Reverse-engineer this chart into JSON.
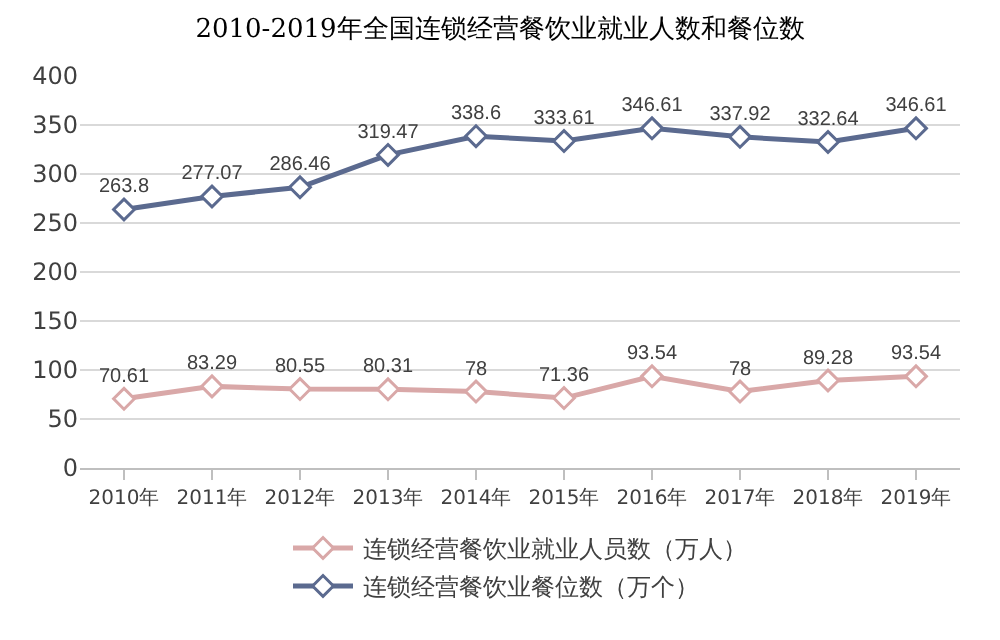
{
  "chart_data": {
    "type": "line",
    "title": "2010-2019年全国连锁经营餐饮业就业人数和餐位数",
    "categories": [
      "2010年",
      "2011年",
      "2012年",
      "2013年",
      "2014年",
      "2015年",
      "2016年",
      "2017年",
      "2018年",
      "2019年"
    ],
    "series": [
      {
        "name": "连锁经营餐饮业就业人员数（万人）",
        "color": "#d9a8a8",
        "values": [
          70.61,
          83.29,
          80.55,
          80.31,
          78,
          71.36,
          93.54,
          78,
          89.28,
          93.54
        ]
      },
      {
        "name": "连锁经营餐饮业餐位数（万个）",
        "color": "#5b6a8f",
        "values": [
          263.8,
          277.07,
          286.46,
          319.47,
          338.6,
          333.61,
          346.61,
          337.92,
          332.64,
          346.61
        ]
      }
    ],
    "ylim": [
      0,
      400
    ],
    "yticks": [
      0,
      50,
      100,
      150,
      200,
      250,
      300,
      350,
      400
    ],
    "grid": "y",
    "legend": "bottom",
    "marker": "diamond",
    "line_style": "solid",
    "data_labels": true
  }
}
